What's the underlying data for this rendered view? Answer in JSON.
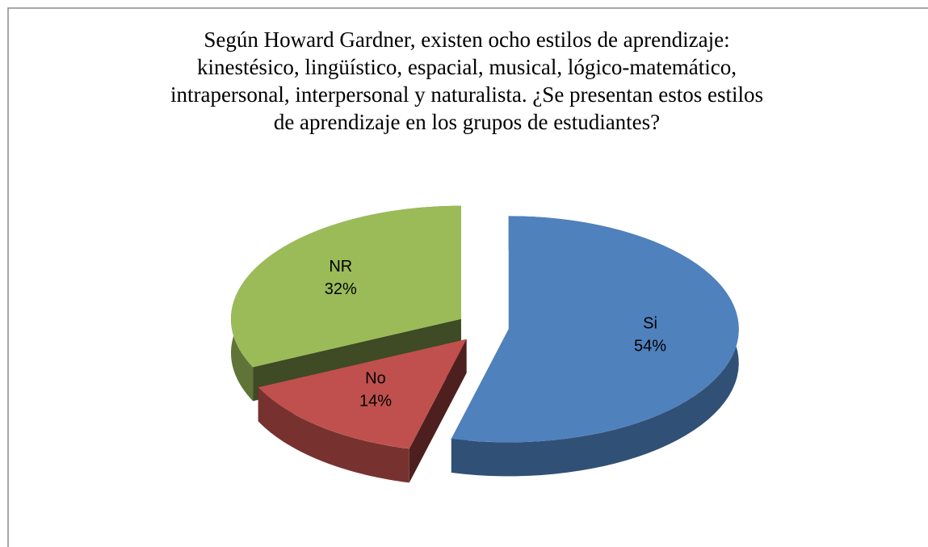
{
  "chart_data": {
    "type": "pie3d",
    "title": [
      "Según Howard Gardner, existen ocho estilos de aprendizaje:",
      "kinestésico, lingüístico, espacial, musical, lógico-matemático,",
      "intrapersonal, interpersonal y naturalista. ¿Se presentan estos estilos",
      "de aprendizaje en los grupos de estudiantes?"
    ],
    "categories": [
      "Si",
      "No",
      "NR"
    ],
    "values": [
      54,
      14,
      32
    ],
    "value_labels": [
      "54%",
      "14%",
      "32%"
    ],
    "colors": [
      "#4f81bd",
      "#c0504d",
      "#9bbb59"
    ],
    "exploded": true
  }
}
